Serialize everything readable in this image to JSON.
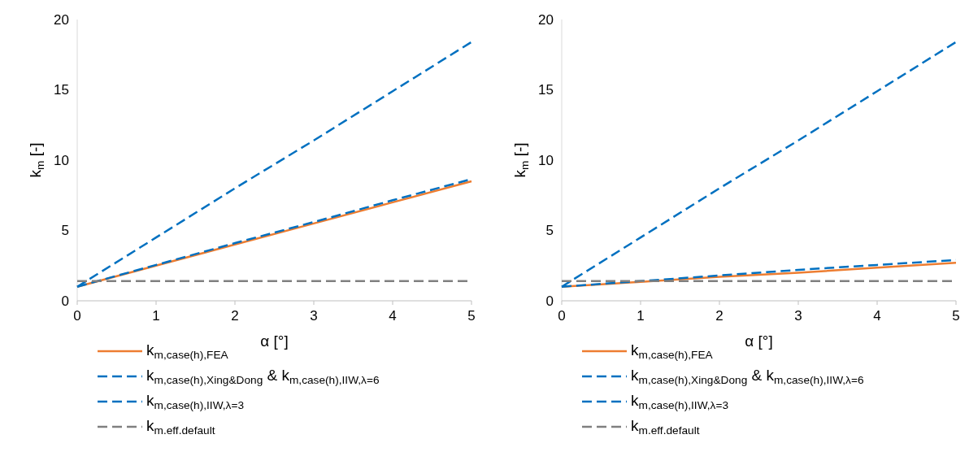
{
  "chart_data": [
    {
      "type": "line",
      "xlabel": "α [°]",
      "ylabel": "k$_{m}$ [-]",
      "xlim": [
        0,
        5
      ],
      "ylim": [
        0,
        20
      ],
      "xticks": [
        0,
        1,
        2,
        3,
        4,
        5
      ],
      "yticks": [
        0,
        5,
        10,
        15,
        20
      ],
      "grid": false,
      "legend": "bottom",
      "x": [
        0,
        1,
        2,
        3,
        4,
        5
      ],
      "series": [
        {
          "name": "k$_{m,case(h),FEA}$",
          "color": "#ed7d31",
          "line_style": "solid",
          "values": [
            1,
            2.5,
            4,
            5.5,
            7,
            8.5
          ]
        },
        {
          "name": "k$_{m,case(h),Xing&Dong}$ & k$_{m,case(h),IIW,λ=6}$",
          "color": "#0070c0",
          "line_style": "dashed",
          "values": [
            1,
            4.5,
            8,
            11.4,
            14.9,
            18.4
          ]
        },
        {
          "name": "k$_{m,case(h),IIW,λ=3}$",
          "color": "#0070c0",
          "line_style": "dashed",
          "values": [
            1,
            2.55,
            4.1,
            5.6,
            7.15,
            8.65
          ]
        },
        {
          "name": "k$_{m.eff.default}$",
          "color": "#808080",
          "line_style": "dashed",
          "values": [
            1.4,
            1.4,
            1.4,
            1.4,
            1.4,
            1.4
          ]
        }
      ]
    },
    {
      "type": "line",
      "xlabel": "α [°]",
      "ylabel": "k$_{m}$ [-]",
      "xlim": [
        0,
        5
      ],
      "ylim": [
        0,
        20
      ],
      "xticks": [
        0,
        1,
        2,
        3,
        4,
        5
      ],
      "yticks": [
        0,
        5,
        10,
        15,
        20
      ],
      "grid": false,
      "legend": "bottom",
      "x": [
        0,
        1,
        2,
        3,
        4,
        5
      ],
      "series": [
        {
          "name": "k$_{m,case(h),FEA}$",
          "color": "#ed7d31",
          "line_style": "solid",
          "values": [
            1,
            1.35,
            1.7,
            2,
            2.35,
            2.7
          ]
        },
        {
          "name": "k$_{m,case(h),Xing&Dong}$ & k$_{m,case(h),IIW,λ=6}$",
          "color": "#0070c0",
          "line_style": "dashed",
          "values": [
            1,
            4.5,
            8,
            11.4,
            14.9,
            18.4
          ]
        },
        {
          "name": "k$_{m,case(h),IIW,λ=3}$",
          "color": "#0070c0",
          "line_style": "dashed",
          "values": [
            1,
            1.4,
            1.8,
            2.2,
            2.55,
            2.9
          ]
        },
        {
          "name": "k$_{m.eff.default}$",
          "color": "#808080",
          "line_style": "dashed",
          "values": [
            1.4,
            1.4,
            1.4,
            1.4,
            1.4,
            1.4
          ]
        }
      ]
    }
  ]
}
